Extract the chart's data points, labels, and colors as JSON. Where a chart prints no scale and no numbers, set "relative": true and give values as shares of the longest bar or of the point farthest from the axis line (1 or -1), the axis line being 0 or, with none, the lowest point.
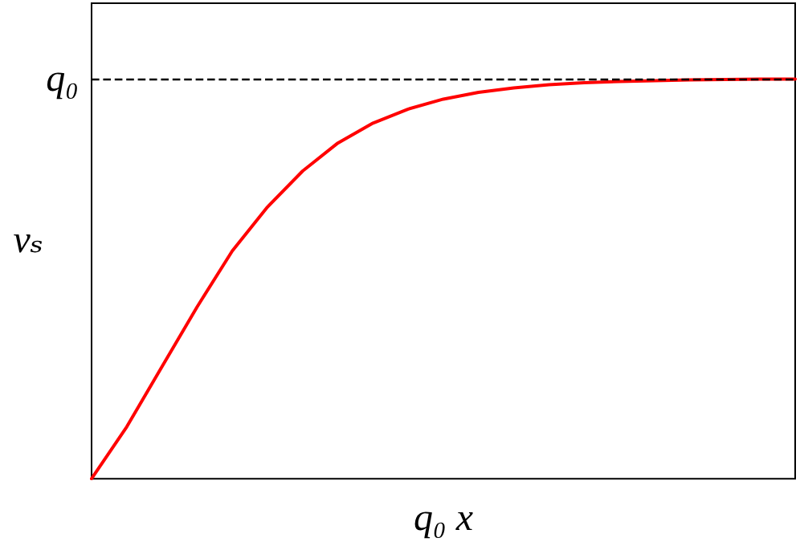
{
  "chart_data": {
    "type": "line",
    "relative": true,
    "xlabel": "q₀ x",
    "ylabel": "vₛ",
    "categories": [
      null,
      null,
      null,
      null,
      null,
      null,
      null,
      null,
      null,
      null,
      null,
      null,
      null,
      null,
      null,
      null,
      null,
      null,
      null,
      null,
      null
    ],
    "series": [
      {
        "color": "#ff0000",
        "values": [
          0,
          0.13,
          0.28,
          0.43,
          0.57,
          0.68,
          0.77,
          0.84,
          0.89,
          0.925,
          0.95,
          0.967,
          0.978,
          0.986,
          0.991,
          0.994,
          0.996,
          0.998,
          0.999,
          1,
          1
        ]
      }
    ],
    "ref_lines": [
      {
        "axis": "y",
        "value": 1,
        "label": "q₀",
        "color": "#000000",
        "line_style": "dashed"
      }
    ],
    "grid": false,
    "marker": "none",
    "line_style": "solid"
  }
}
